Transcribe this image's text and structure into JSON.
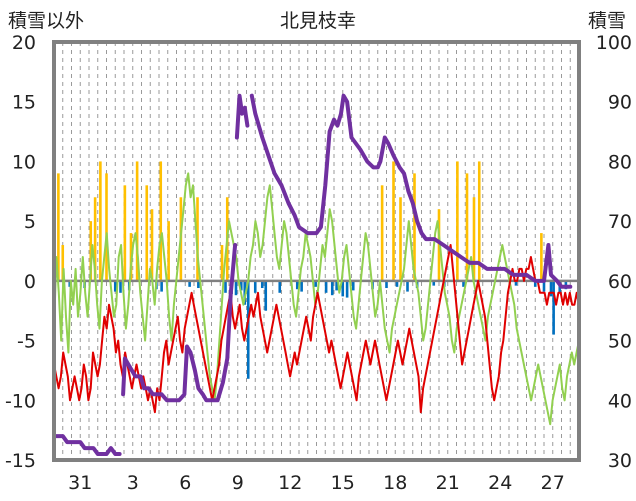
{
  "chart_data": {
    "type": "line",
    "title": "北見枝幸",
    "left_axis_label": "積雪以外",
    "right_axis_label": "積雪",
    "left_ylim": [
      -15,
      20
    ],
    "right_ylim": [
      30,
      100
    ],
    "left_ticks": [
      "20",
      "15",
      "10",
      "5",
      "0",
      "-5",
      "-10",
      "-15"
    ],
    "right_ticks": [
      "100",
      "90",
      "80",
      "70",
      "60",
      "50",
      "40",
      "30"
    ],
    "x_tick_labels": [
      "31",
      "3",
      "6",
      "9",
      "12",
      "15",
      "18",
      "21",
      "24",
      "27"
    ],
    "xlim": [
      0,
      60
    ],
    "grid": "vertical dashed",
    "colors": {
      "frame": "#808080",
      "snow_depth": "#7030a0",
      "temp_min": "#e00000",
      "temp_max": "#92d050",
      "snowfall": "#ffc000",
      "precip": "#0070c0",
      "zero_line": "#808080"
    },
    "series": [
      {
        "axis": "right",
        "segments": [
          [
            [
              0.0,
              34
            ],
            [
              1.0,
              34
            ],
            [
              1.5,
              33
            ],
            [
              3.0,
              33
            ],
            [
              3.5,
              32
            ],
            [
              4.5,
              32
            ],
            [
              5.0,
              31
            ],
            [
              6.0,
              31
            ],
            [
              6.5,
              32
            ],
            [
              7.0,
              31
            ],
            [
              7.5,
              31
            ]
          ],
          [
            [
              7.9,
              41
            ],
            [
              8.1,
              47
            ],
            [
              8.5,
              46
            ],
            [
              9.3,
              44
            ],
            [
              9.9,
              44
            ],
            [
              10.3,
              42
            ],
            [
              10.8,
              42
            ],
            [
              11.3,
              41
            ],
            [
              11.8,
              41
            ],
            [
              12.3,
              41
            ],
            [
              12.9,
              40
            ],
            [
              13.6,
              40
            ],
            [
              14.3,
              40
            ],
            [
              14.9,
              41
            ],
            [
              15.2,
              49
            ],
            [
              15.6,
              48
            ],
            [
              16.1,
              45
            ],
            [
              16.5,
              42
            ],
            [
              17.0,
              41
            ],
            [
              17.4,
              40
            ],
            [
              18.1,
              40
            ],
            [
              18.7,
              40
            ],
            [
              19.3,
              43
            ],
            [
              19.8,
              47
            ],
            [
              20.2,
              58
            ],
            [
              20.4,
              61
            ],
            [
              20.7,
              66
            ]
          ],
          [
            [
              20.9,
              84
            ],
            [
              21.2,
              91
            ],
            [
              21.5,
              88
            ],
            [
              21.8,
              89
            ],
            [
              21.9,
              88
            ],
            [
              22.1,
              86
            ]
          ],
          [
            [
              22.6,
              91
            ],
            [
              23.0,
              88
            ],
            [
              23.8,
              84
            ],
            [
              24.5,
              81
            ],
            [
              25.2,
              78
            ],
            [
              26.0,
              76
            ],
            [
              26.8,
              73
            ],
            [
              27.5,
              71
            ],
            [
              28.0,
              69
            ],
            [
              29.0,
              68
            ],
            [
              30.0,
              68
            ],
            [
              30.5,
              69
            ],
            [
              31.0,
              76
            ],
            [
              31.5,
              85
            ],
            [
              32.0,
              87
            ],
            [
              32.4,
              86
            ],
            [
              32.8,
              88
            ],
            [
              33.1,
              91
            ],
            [
              33.5,
              90
            ],
            [
              34.0,
              84
            ],
            [
              35.0,
              82
            ],
            [
              35.8,
              80
            ],
            [
              36.5,
              79
            ],
            [
              37.0,
              79
            ],
            [
              37.3,
              80
            ],
            [
              37.8,
              84
            ],
            [
              38.2,
              83
            ],
            [
              38.8,
              81
            ],
            [
              39.5,
              79
            ],
            [
              40.0,
              78
            ],
            [
              40.5,
              75
            ],
            [
              41.0,
              73
            ],
            [
              41.5,
              70
            ],
            [
              42.0,
              68
            ],
            [
              42.5,
              67
            ],
            [
              43.5,
              67
            ],
            [
              44.5,
              66
            ],
            [
              45.5,
              65
            ],
            [
              46.5,
              64
            ],
            [
              47.5,
              63
            ],
            [
              48.5,
              63
            ],
            [
              49.5,
              62
            ],
            [
              50.5,
              62
            ],
            [
              51.5,
              62
            ],
            [
              52.5,
              61
            ],
            [
              53.0,
              61
            ],
            [
              54.0,
              61
            ],
            [
              55.0,
              60
            ],
            [
              56.0,
              60
            ],
            [
              56.5,
              66
            ],
            [
              56.8,
              61
            ],
            [
              57.5,
              60
            ],
            [
              58.0,
              59
            ],
            [
              59.0,
              59
            ]
          ]
        ]
      },
      {
        "axis": "left",
        "values": [
          -7,
          -8,
          -9,
          -8,
          -6,
          -7,
          -8,
          -10,
          -9,
          -8,
          -9,
          -10,
          -9,
          -7,
          -8,
          -10,
          -9,
          -6,
          -7,
          -8,
          -7,
          -5,
          -3,
          -4,
          -2,
          -3,
          -4,
          -6,
          -5,
          -7,
          -8,
          -6,
          -7,
          -8,
          -9,
          -8,
          -7,
          -8,
          -9,
          -8,
          -9,
          -10,
          -9,
          -10,
          -11,
          -9,
          -10,
          -8,
          -6,
          -5,
          -7,
          -6,
          -5,
          -4,
          -3,
          -5,
          -6,
          -4,
          -3,
          -2,
          -1,
          -2,
          -3,
          -4,
          -5,
          -6,
          -7,
          -8,
          -9,
          -10,
          -9,
          -8,
          -7,
          -5,
          -4,
          -3,
          -2,
          -1,
          -3,
          -4,
          -3,
          -2,
          -4,
          -5,
          -4,
          -3,
          -2,
          -3,
          -2,
          -1,
          -3,
          -4,
          -5,
          -6,
          -5,
          -4,
          -3,
          -2,
          -3,
          -4,
          -5,
          -6,
          -7,
          -8,
          -7,
          -6,
          -7,
          -6,
          -5,
          -4,
          -3,
          -4,
          -5,
          -3,
          -2,
          -1,
          -2,
          -3,
          -4,
          -5,
          -6,
          -5,
          -6,
          -7,
          -8,
          -9,
          -8,
          -7,
          -6,
          -7,
          -8,
          -9,
          -10,
          -8,
          -7,
          -6,
          -5,
          -6,
          -7,
          -6,
          -5,
          -6,
          -7,
          -8,
          -9,
          -10,
          -9,
          -8,
          -7,
          -6,
          -5,
          -6,
          -7,
          -6,
          -5,
          -4,
          -5,
          -6,
          -7,
          -8,
          -11,
          -9,
          -8,
          -7,
          -6,
          -5,
          -4,
          -3,
          -2,
          -1,
          0,
          1,
          2,
          3,
          1,
          -1,
          -3,
          -5,
          -7,
          -6,
          -5,
          -4,
          -3,
          -2,
          -1,
          0,
          -1,
          -2,
          -3,
          -5,
          -7,
          -9,
          -10,
          -9,
          -8,
          -6,
          -5,
          -3,
          -1,
          0,
          1,
          0,
          0,
          1,
          1,
          0,
          1,
          1,
          2,
          1,
          0,
          0,
          -1,
          -1,
          -1,
          -2,
          -1,
          -1,
          -1,
          -2,
          -1,
          -1,
          -2,
          -1,
          -2,
          -1,
          -2,
          -2,
          -1,
          -2
        ]
      },
      {
        "axis": "left",
        "values": [
          -4,
          2,
          -1,
          -5,
          1,
          -3,
          -6,
          0,
          -2,
          1,
          -3,
          -1,
          2,
          -1,
          -3,
          0,
          3,
          1,
          -2,
          -4,
          0,
          2,
          4,
          1,
          -1,
          -3,
          -2,
          2,
          3,
          -1,
          -4,
          -2,
          1,
          3,
          4,
          2,
          -1,
          -3,
          -5,
          -2,
          1,
          0,
          -2,
          1,
          3,
          4,
          2,
          0,
          -3,
          -5,
          -2,
          0,
          2,
          4,
          6,
          8,
          9,
          7,
          8,
          5,
          2,
          0,
          -2,
          -4,
          -6,
          -8,
          -9,
          -10,
          -8,
          -5,
          -2,
          1,
          3,
          5,
          4,
          3,
          2,
          0,
          -1,
          -2,
          -1,
          0,
          2,
          3,
          5,
          4,
          2,
          3,
          5,
          7,
          8,
          6,
          4,
          2,
          1,
          3,
          5,
          4,
          2,
          0,
          -2,
          -3,
          -1,
          1,
          2,
          4,
          3,
          2,
          0,
          -2,
          -1,
          1,
          3,
          2,
          4,
          6,
          5,
          3,
          1,
          -1,
          0,
          2,
          3,
          1,
          -1,
          -3,
          -4,
          -2,
          0,
          2,
          4,
          3,
          1,
          -1,
          -3,
          -2,
          0,
          -2,
          -4,
          -5,
          -6,
          -4,
          -3,
          -2,
          -1,
          0,
          1,
          3,
          5,
          3,
          1,
          0,
          -1,
          -3,
          -5,
          -4,
          -2,
          0,
          2,
          4,
          5,
          3,
          1,
          -1,
          -2,
          -3,
          -5,
          -6,
          -4,
          -3,
          -2,
          -1,
          0,
          1,
          2,
          0,
          -1,
          -2,
          -3,
          -4,
          -5,
          -3,
          -2,
          -1,
          0,
          1,
          2,
          3,
          2,
          1,
          0,
          -1,
          -2,
          -4,
          -5,
          -6,
          -7,
          -8,
          -9,
          -10,
          -9,
          -8,
          -7,
          -8,
          -9,
          -10,
          -11,
          -12,
          -10,
          -9,
          -8,
          -7,
          -9,
          -10,
          -8,
          -7,
          -6,
          -7,
          -6,
          -5
        ]
      },
      {
        "axis": "left",
        "type": "bar",
        "points": [
          [
            0.5,
            9
          ],
          [
            1.0,
            3
          ],
          [
            4.2,
            5
          ],
          [
            4.7,
            7
          ],
          [
            5.3,
            10
          ],
          [
            6.0,
            9
          ],
          [
            8.1,
            8
          ],
          [
            8.8,
            4
          ],
          [
            9.5,
            10
          ],
          [
            10.6,
            8
          ],
          [
            11.2,
            6
          ],
          [
            12.2,
            10
          ],
          [
            13.1,
            5
          ],
          [
            14.5,
            7
          ],
          [
            16.4,
            7
          ],
          [
            19.2,
            3
          ],
          [
            19.8,
            7
          ],
          [
            37.5,
            8
          ],
          [
            38.8,
            10
          ],
          [
            39.6,
            7
          ],
          [
            41.2,
            9
          ],
          [
            44.0,
            6
          ],
          [
            46.1,
            10
          ],
          [
            47.2,
            9
          ],
          [
            48.0,
            7
          ],
          [
            48.6,
            10
          ],
          [
            55.7,
            4
          ]
        ]
      },
      {
        "axis": "left",
        "type": "bar",
        "points": [
          [
            1.8,
            -0.5
          ],
          [
            3.5,
            -0.6
          ],
          [
            7.0,
            -0.9
          ],
          [
            7.6,
            -1.0
          ],
          [
            8.6,
            -0.8
          ],
          [
            11.7,
            -0.7
          ],
          [
            12.3,
            -0.9
          ],
          [
            15.5,
            -0.5
          ],
          [
            16.5,
            -0.6
          ],
          [
            19.6,
            -1.0
          ],
          [
            20.3,
            -1.1
          ],
          [
            20.8,
            -1.2
          ],
          [
            21.4,
            -0.8
          ],
          [
            21.8,
            -2.0
          ],
          [
            22.2,
            -8.2
          ],
          [
            23.0,
            -1.0
          ],
          [
            23.8,
            -0.6
          ],
          [
            24.2,
            -2.5
          ],
          [
            25.8,
            -1.0
          ],
          [
            27.8,
            -0.7
          ],
          [
            28.3,
            -0.9
          ],
          [
            29.9,
            -0.5
          ],
          [
            31.1,
            -1.0
          ],
          [
            31.8,
            -1.2
          ],
          [
            32.3,
            -0.8
          ],
          [
            33.0,
            -1.3
          ],
          [
            33.5,
            -1.4
          ],
          [
            34.2,
            -0.8
          ],
          [
            36.4,
            -0.7
          ],
          [
            38.0,
            -0.6
          ],
          [
            39.2,
            -0.5
          ],
          [
            40.4,
            -0.9
          ],
          [
            41.5,
            -0.6
          ],
          [
            43.4,
            -0.4
          ],
          [
            44.6,
            -0.5
          ],
          [
            46.8,
            -0.5
          ],
          [
            52.8,
            -0.4
          ],
          [
            55.0,
            -0.5
          ],
          [
            56.0,
            -0.9
          ],
          [
            56.8,
            -1.3
          ],
          [
            57.1,
            -4.5
          ],
          [
            57.8,
            -1.0
          ],
          [
            58.5,
            -0.7
          ]
        ]
      }
    ]
  }
}
